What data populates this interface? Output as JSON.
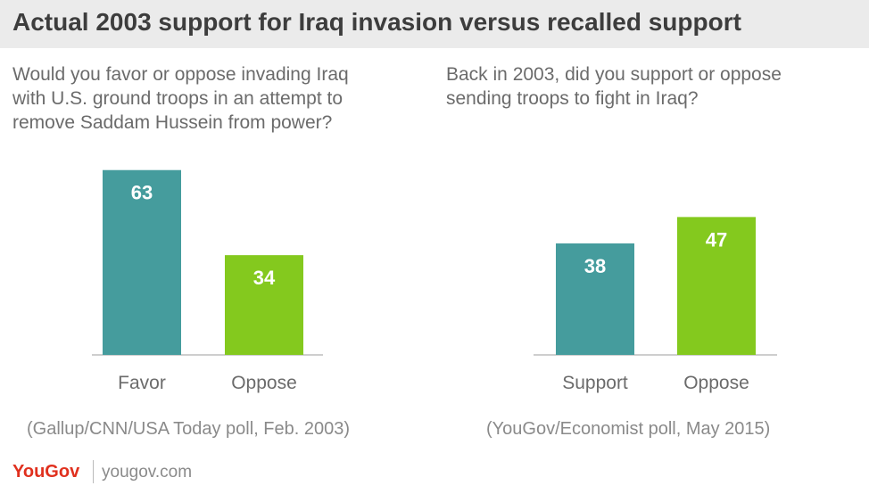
{
  "title": "Actual 2003 support for Iraq invasion versus recalled support",
  "colors": {
    "primary": "#459c9d",
    "secondary": "#84c91e",
    "label": "#ffffff",
    "axis": "#bdbdbd",
    "logo": "#e0301e"
  },
  "chart_data": [
    {
      "type": "bar",
      "title": "Would you favor or oppose invading Iraq\nwith U.S. ground troops in an attempt to\nremove Saddam Hussein from power?",
      "categories": [
        "Favor",
        "Oppose"
      ],
      "values": [
        63,
        34
      ],
      "source": "(Gallup/CNN/USA Today poll, Feb. 2003)"
    },
    {
      "type": "bar",
      "title": "Back in 2003, did you support or oppose\nsending troops to fight in Iraq?",
      "categories": [
        "Support",
        "Oppose"
      ],
      "values": [
        38,
        47
      ],
      "source": "(YouGov/Economist poll, May 2015)"
    }
  ],
  "footer": {
    "logo": "YouGov",
    "site": "yougov.com"
  }
}
